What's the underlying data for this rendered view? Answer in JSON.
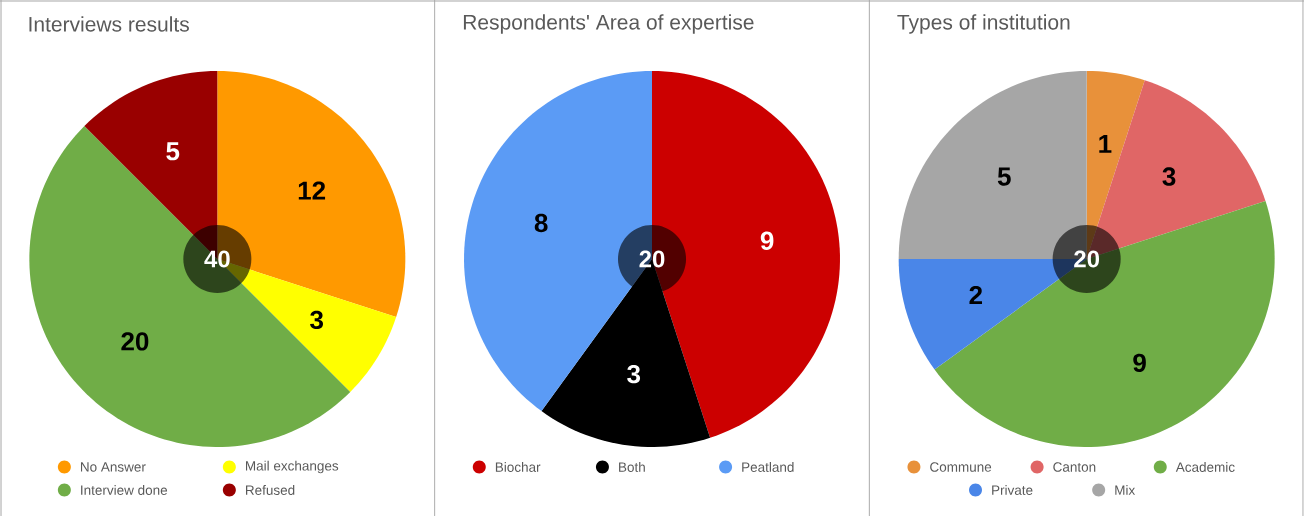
{
  "chart_data": [
    {
      "type": "pie",
      "title": "Interviews results",
      "categories": [
        "No Answer",
        "Mail exchanges",
        "Interview done",
        "Refused"
      ],
      "values": [
        12,
        3,
        20,
        5
      ],
      "colors": [
        "#ff9900",
        "#ffff00",
        "#70ad47",
        "#990000"
      ],
      "data_labels": true,
      "legend": "bottom",
      "annotations": [
        "40"
      ]
    },
    {
      "type": "pie",
      "title": "Respondents' Area of expertise",
      "categories": [
        "Biochar",
        "Both",
        "Peatland"
      ],
      "values": [
        9,
        3,
        8
      ],
      "colors": [
        "#cc0000",
        "#000000",
        "#5b9bf5"
      ],
      "data_labels": true,
      "legend": "bottom",
      "annotations": [
        "20"
      ]
    },
    {
      "type": "pie",
      "title": "Types of institution",
      "categories": [
        "Commune",
        "Canton",
        "Academic",
        "Private",
        "Mix"
      ],
      "values": [
        1,
        3,
        9,
        2,
        5
      ],
      "colors": [
        "#e8913a",
        "#e06666",
        "#70ad47",
        "#4a86e8",
        "#a6a6a6"
      ],
      "data_labels": true,
      "legend": "bottom",
      "annotations": [
        "20"
      ]
    }
  ]
}
